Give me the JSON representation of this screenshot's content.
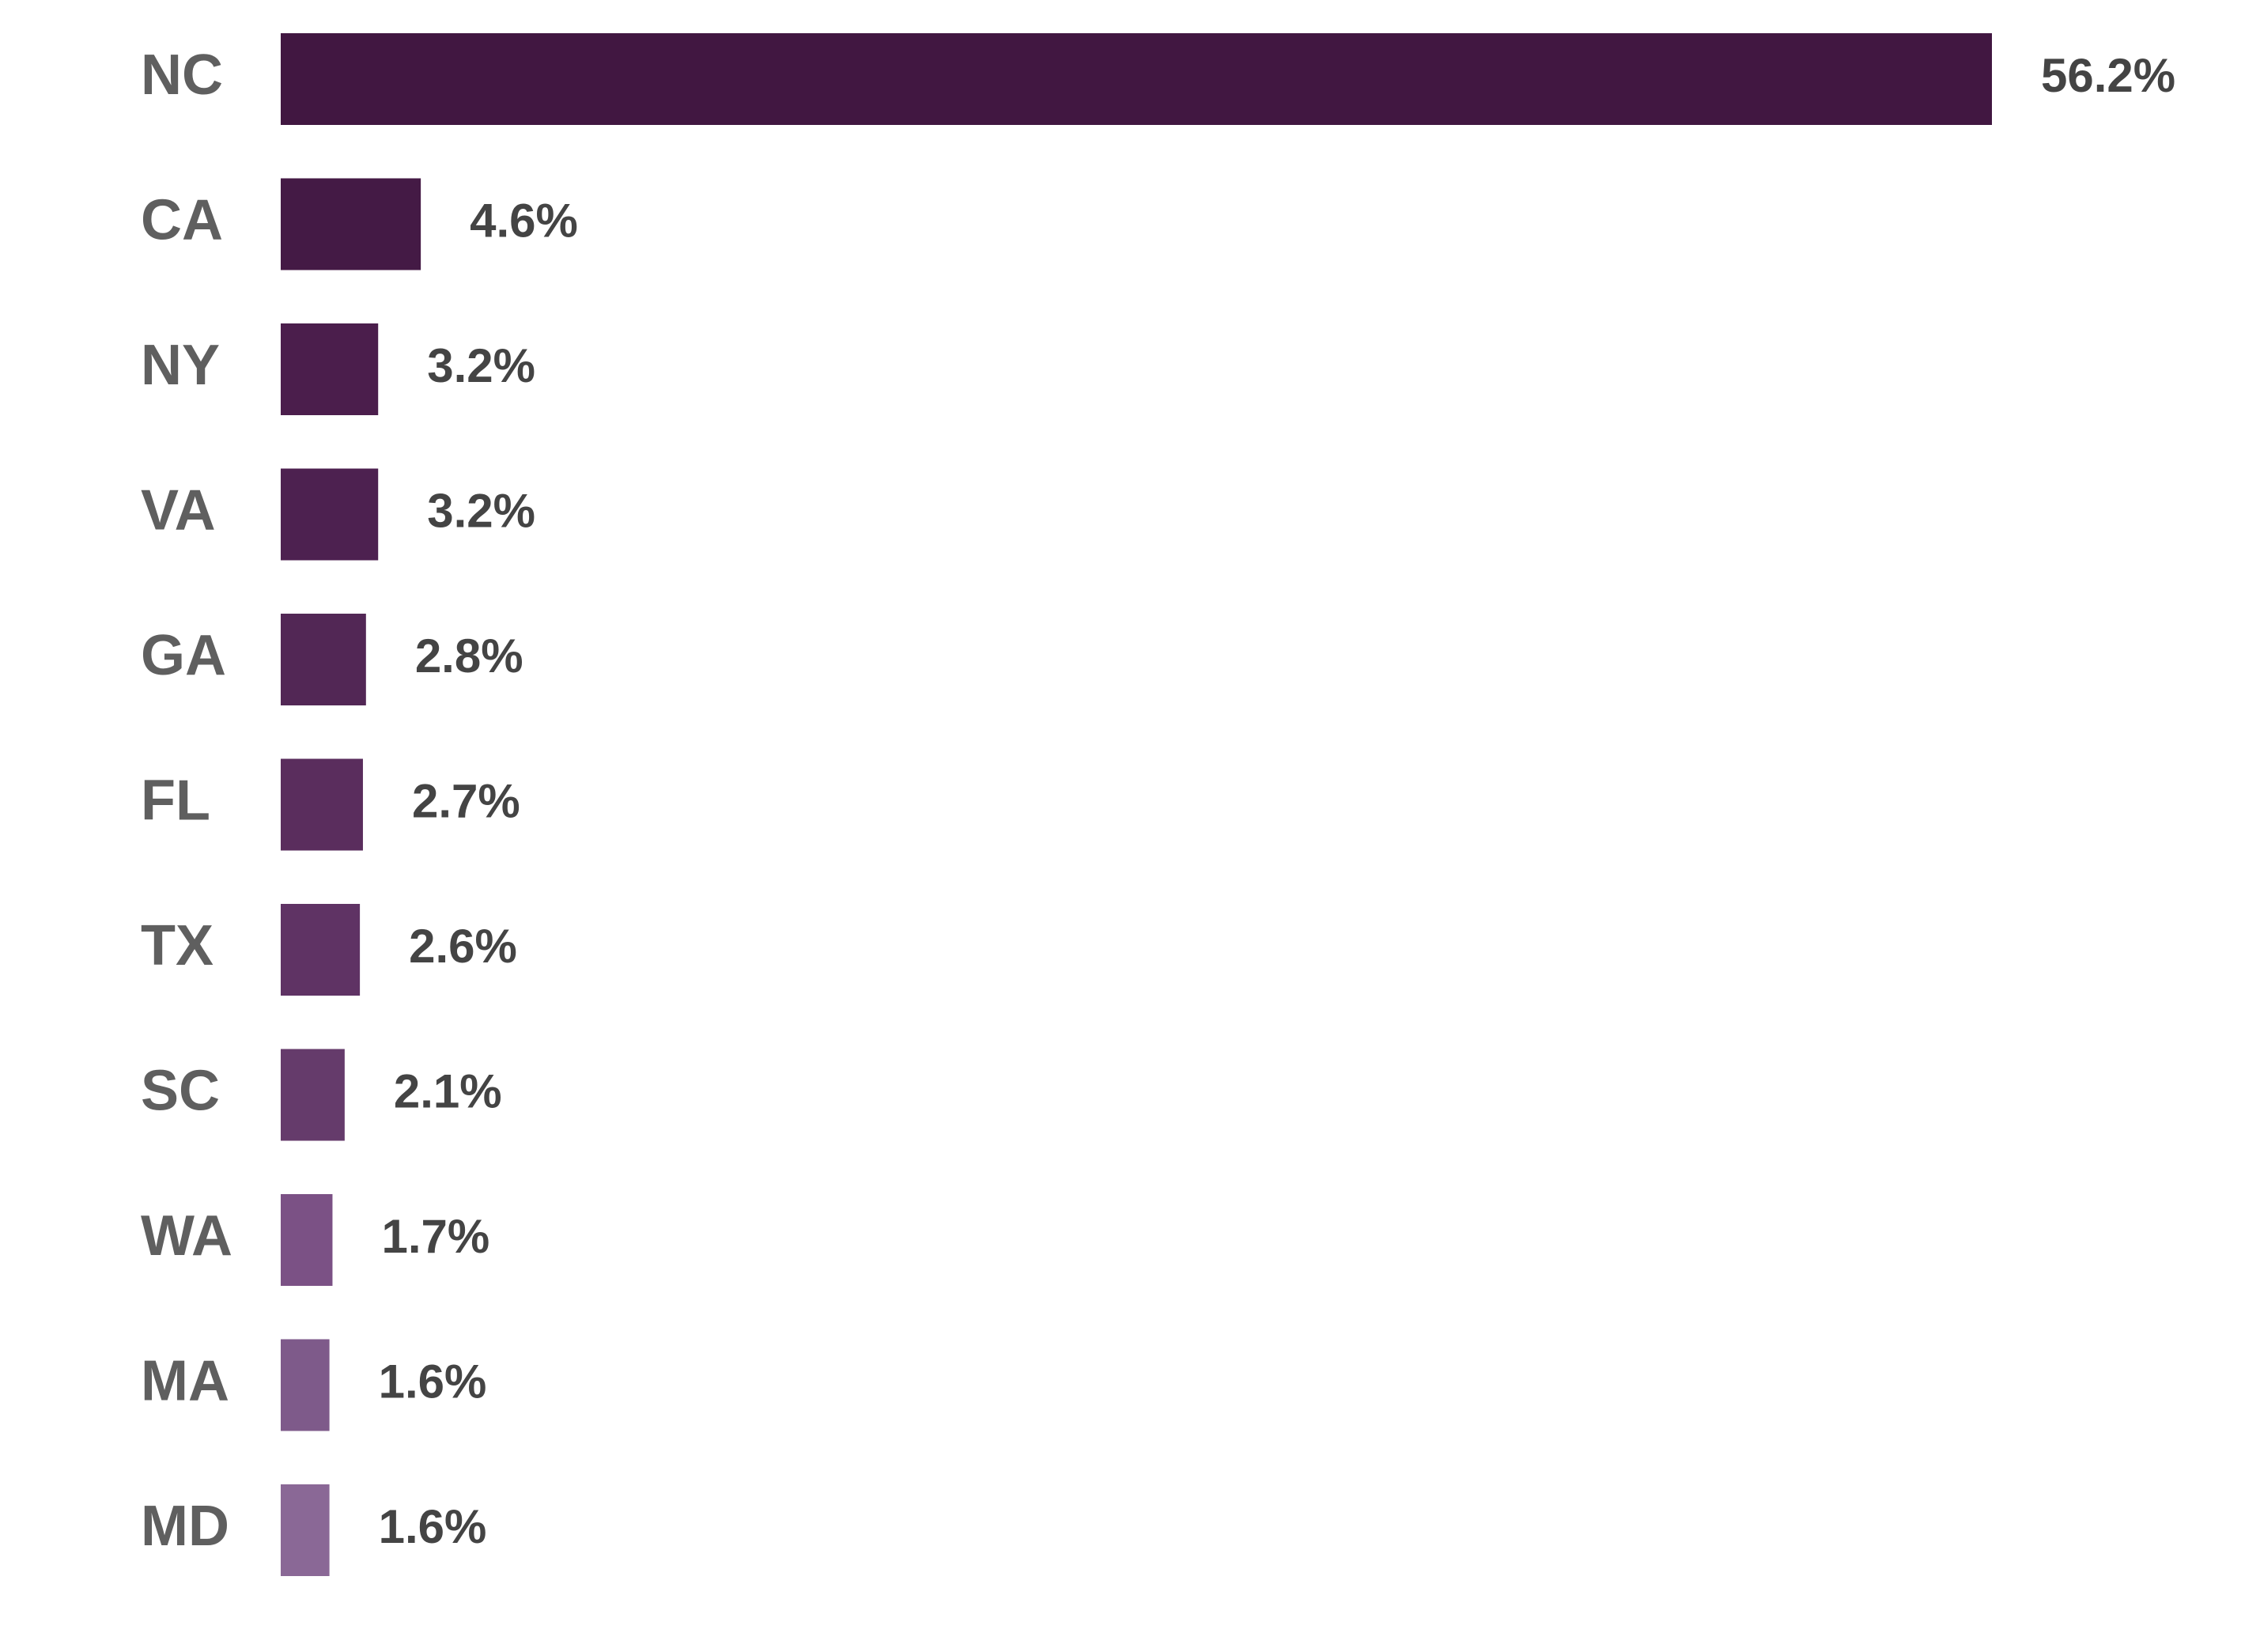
{
  "chart_data": {
    "type": "bar",
    "orientation": "horizontal",
    "title": "",
    "xlabel": "",
    "ylabel": "",
    "grid": false,
    "legend": "none",
    "xlim": [
      0,
      56.2
    ],
    "categories": [
      "NC",
      "CA",
      "NY",
      "VA",
      "GA",
      "FL",
      "TX",
      "SC",
      "WA",
      "MA",
      "MD"
    ],
    "values": [
      56.2,
      4.6,
      3.2,
      3.2,
      2.8,
      2.7,
      2.6,
      2.1,
      1.7,
      1.6,
      1.6
    ],
    "value_labels": [
      "56.2%",
      "4.6%",
      "3.2%",
      "3.2%",
      "2.8%",
      "2.7%",
      "2.6%",
      "2.1%",
      "1.7%",
      "1.6%",
      "1.6%"
    ],
    "colors": [
      "#411741",
      "#441a45",
      "#4b1e4c",
      "#4d2150",
      "#522755",
      "#5a2d5d",
      "#5f3364",
      "#653b6b",
      "#7b5185",
      "#7e5a8a",
      "#8a6896"
    ]
  }
}
